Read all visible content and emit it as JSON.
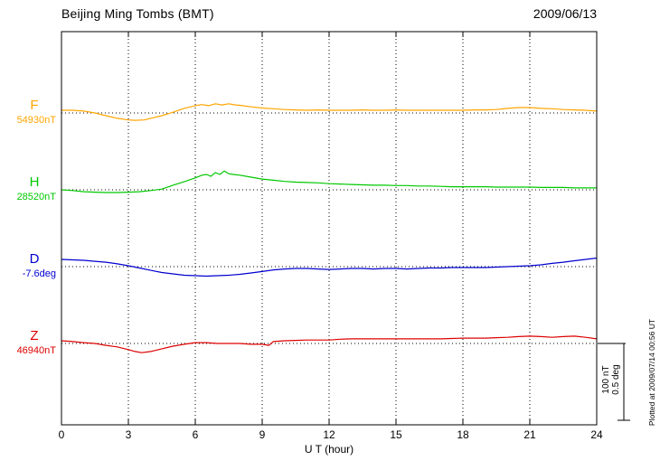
{
  "chart_data": {
    "type": "line",
    "title": "Beijing Ming Tombs (BMT)",
    "date": "2009/06/13",
    "xlabel": "U T (hour)",
    "xlim": [
      0,
      24
    ],
    "x_ticks": [
      0,
      3,
      6,
      9,
      12,
      15,
      18,
      21,
      24
    ],
    "grid": "dotted vertical gridlines every 3 hours; dotted horizontal baseline per trace",
    "legend_position": "left-of-traces",
    "scale_bar": {
      "line1": "100 nT",
      "line2": "0.5 deg"
    },
    "plotted_at": "Plotted at 2009/07/14 00:56 UT",
    "series": [
      {
        "name": "F",
        "baseline_label": "54930nT",
        "baseline_value": 54930,
        "unit": "nT",
        "color": "#FFA500",
        "x": [
          0,
          0.5,
          1,
          1.5,
          2,
          2.5,
          3,
          3.3,
          3.7,
          4,
          4.5,
          5,
          5.5,
          6,
          6.3,
          6.6,
          6.9,
          7.2,
          7.5,
          7.8,
          8,
          8.5,
          9,
          9.5,
          10,
          10.5,
          11,
          11.5,
          12,
          12.5,
          13,
          13.5,
          14,
          14.5,
          15,
          15.5,
          16,
          16.5,
          17,
          17.5,
          18,
          18.5,
          19,
          19.5,
          20,
          20.5,
          21,
          21.5,
          22,
          22.5,
          23,
          23.5,
          24
        ],
        "offsets": [
          3.5,
          3.5,
          2.5,
          0,
          -3.5,
          -7,
          -9,
          -9.5,
          -9,
          -7,
          -3.5,
          1,
          6,
          9.5,
          11,
          9.5,
          12,
          10.5,
          12,
          10.5,
          10,
          8,
          6.5,
          5.5,
          4.5,
          4,
          3.5,
          4,
          3.5,
          3.5,
          3.5,
          4,
          3.5,
          3.5,
          4,
          3.5,
          3.5,
          3.5,
          3.5,
          3.5,
          3.5,
          4,
          4,
          4.5,
          6,
          7,
          7,
          6,
          5.5,
          4.5,
          4,
          3.5,
          2.5
        ]
      },
      {
        "name": "H",
        "baseline_label": "28520nT",
        "baseline_value": 28520,
        "unit": "nT",
        "color": "#00C800",
        "x": [
          0,
          0.5,
          1,
          1.5,
          2,
          2.5,
          3,
          3.5,
          4,
          4.5,
          5,
          5.5,
          6,
          6.3,
          6.5,
          6.7,
          6.9,
          7.1,
          7.3,
          7.5,
          7.7,
          8,
          8.5,
          9,
          9.5,
          10,
          10.5,
          11,
          11.5,
          12,
          12.5,
          13,
          13.5,
          14,
          14.5,
          15,
          15.5,
          16,
          16.5,
          17,
          17.5,
          18,
          18.5,
          19,
          19.5,
          20,
          20.5,
          21,
          21.5,
          22,
          22.5,
          23,
          23.5,
          24
        ],
        "offsets": [
          0,
          -1,
          -2.5,
          -3,
          -3.5,
          -3.5,
          -3,
          -2.5,
          -1,
          1,
          6,
          10.5,
          15.5,
          19,
          20,
          17.5,
          22.5,
          20,
          24.5,
          21,
          20,
          19,
          16.5,
          14,
          12.5,
          11,
          10,
          9.5,
          9,
          8,
          7.5,
          7,
          6.5,
          6,
          6,
          5.5,
          5.5,
          5,
          5,
          4.5,
          4,
          4,
          4,
          4,
          3.5,
          3.5,
          3.5,
          3.5,
          3,
          3,
          3,
          2.5,
          2.5,
          2.5
        ]
      },
      {
        "name": "D",
        "baseline_label": "-7.6deg",
        "baseline_value": -7.6,
        "unit": "deg",
        "color": "#0000D0",
        "x": [
          0,
          0.5,
          1,
          1.5,
          2,
          2.5,
          3,
          3.5,
          4,
          4.5,
          5,
          5.5,
          6,
          6.5,
          7,
          7.5,
          8,
          8.5,
          9,
          9.5,
          10,
          10.5,
          11,
          11.5,
          12,
          12.5,
          13,
          13.5,
          14,
          14.5,
          15,
          15.5,
          16,
          16.5,
          17,
          17.5,
          18,
          18.5,
          19,
          19.5,
          20,
          20.5,
          21,
          21.5,
          22,
          22.5,
          23,
          23.5,
          24
        ],
        "offsets": [
          0.047,
          0.044,
          0.041,
          0.035,
          0.029,
          0.018,
          0.006,
          -0.009,
          -0.024,
          -0.038,
          -0.047,
          -0.056,
          -0.059,
          -0.062,
          -0.059,
          -0.056,
          -0.05,
          -0.041,
          -0.032,
          -0.021,
          -0.015,
          -0.012,
          -0.012,
          -0.015,
          -0.018,
          -0.015,
          -0.012,
          -0.012,
          -0.015,
          -0.012,
          -0.012,
          -0.015,
          -0.012,
          -0.009,
          -0.009,
          -0.006,
          -0.006,
          -0.006,
          -0.006,
          -0.003,
          0,
          0.003,
          0.006,
          0.012,
          0.021,
          0.029,
          0.038,
          0.047,
          0.056
        ]
      },
      {
        "name": "Z",
        "baseline_label": "46940nT",
        "baseline_value": 46940,
        "unit": "nT",
        "color": "#DD0000",
        "x": [
          0,
          0.5,
          1,
          1.5,
          2,
          2.5,
          3,
          3.3,
          3.6,
          4,
          4.5,
          5,
          5.5,
          6,
          6.5,
          7,
          7.5,
          8,
          8.5,
          9,
          9.3,
          9.5,
          10,
          10.5,
          11,
          11.5,
          12,
          12.5,
          13,
          13.5,
          14,
          14.5,
          15,
          15.5,
          16,
          16.5,
          17,
          17.5,
          18,
          18.5,
          19,
          19.5,
          20,
          20.5,
          21,
          21.5,
          22,
          22.5,
          23,
          23.5,
          24
        ],
        "offsets": [
          3.5,
          2.5,
          1,
          0,
          -2.5,
          -4.5,
          -8,
          -10.5,
          -12,
          -10.5,
          -7,
          -3.5,
          -1,
          1,
          1,
          0,
          0,
          0,
          -1,
          -1,
          -2.5,
          2.5,
          3.5,
          4,
          4.5,
          4.5,
          4.5,
          5.5,
          6,
          6,
          6,
          6,
          6,
          6,
          6,
          6,
          6,
          6.5,
          7,
          7,
          7,
          7.5,
          8,
          9,
          9.5,
          9,
          8,
          9,
          9.5,
          8,
          6
        ]
      }
    ]
  }
}
